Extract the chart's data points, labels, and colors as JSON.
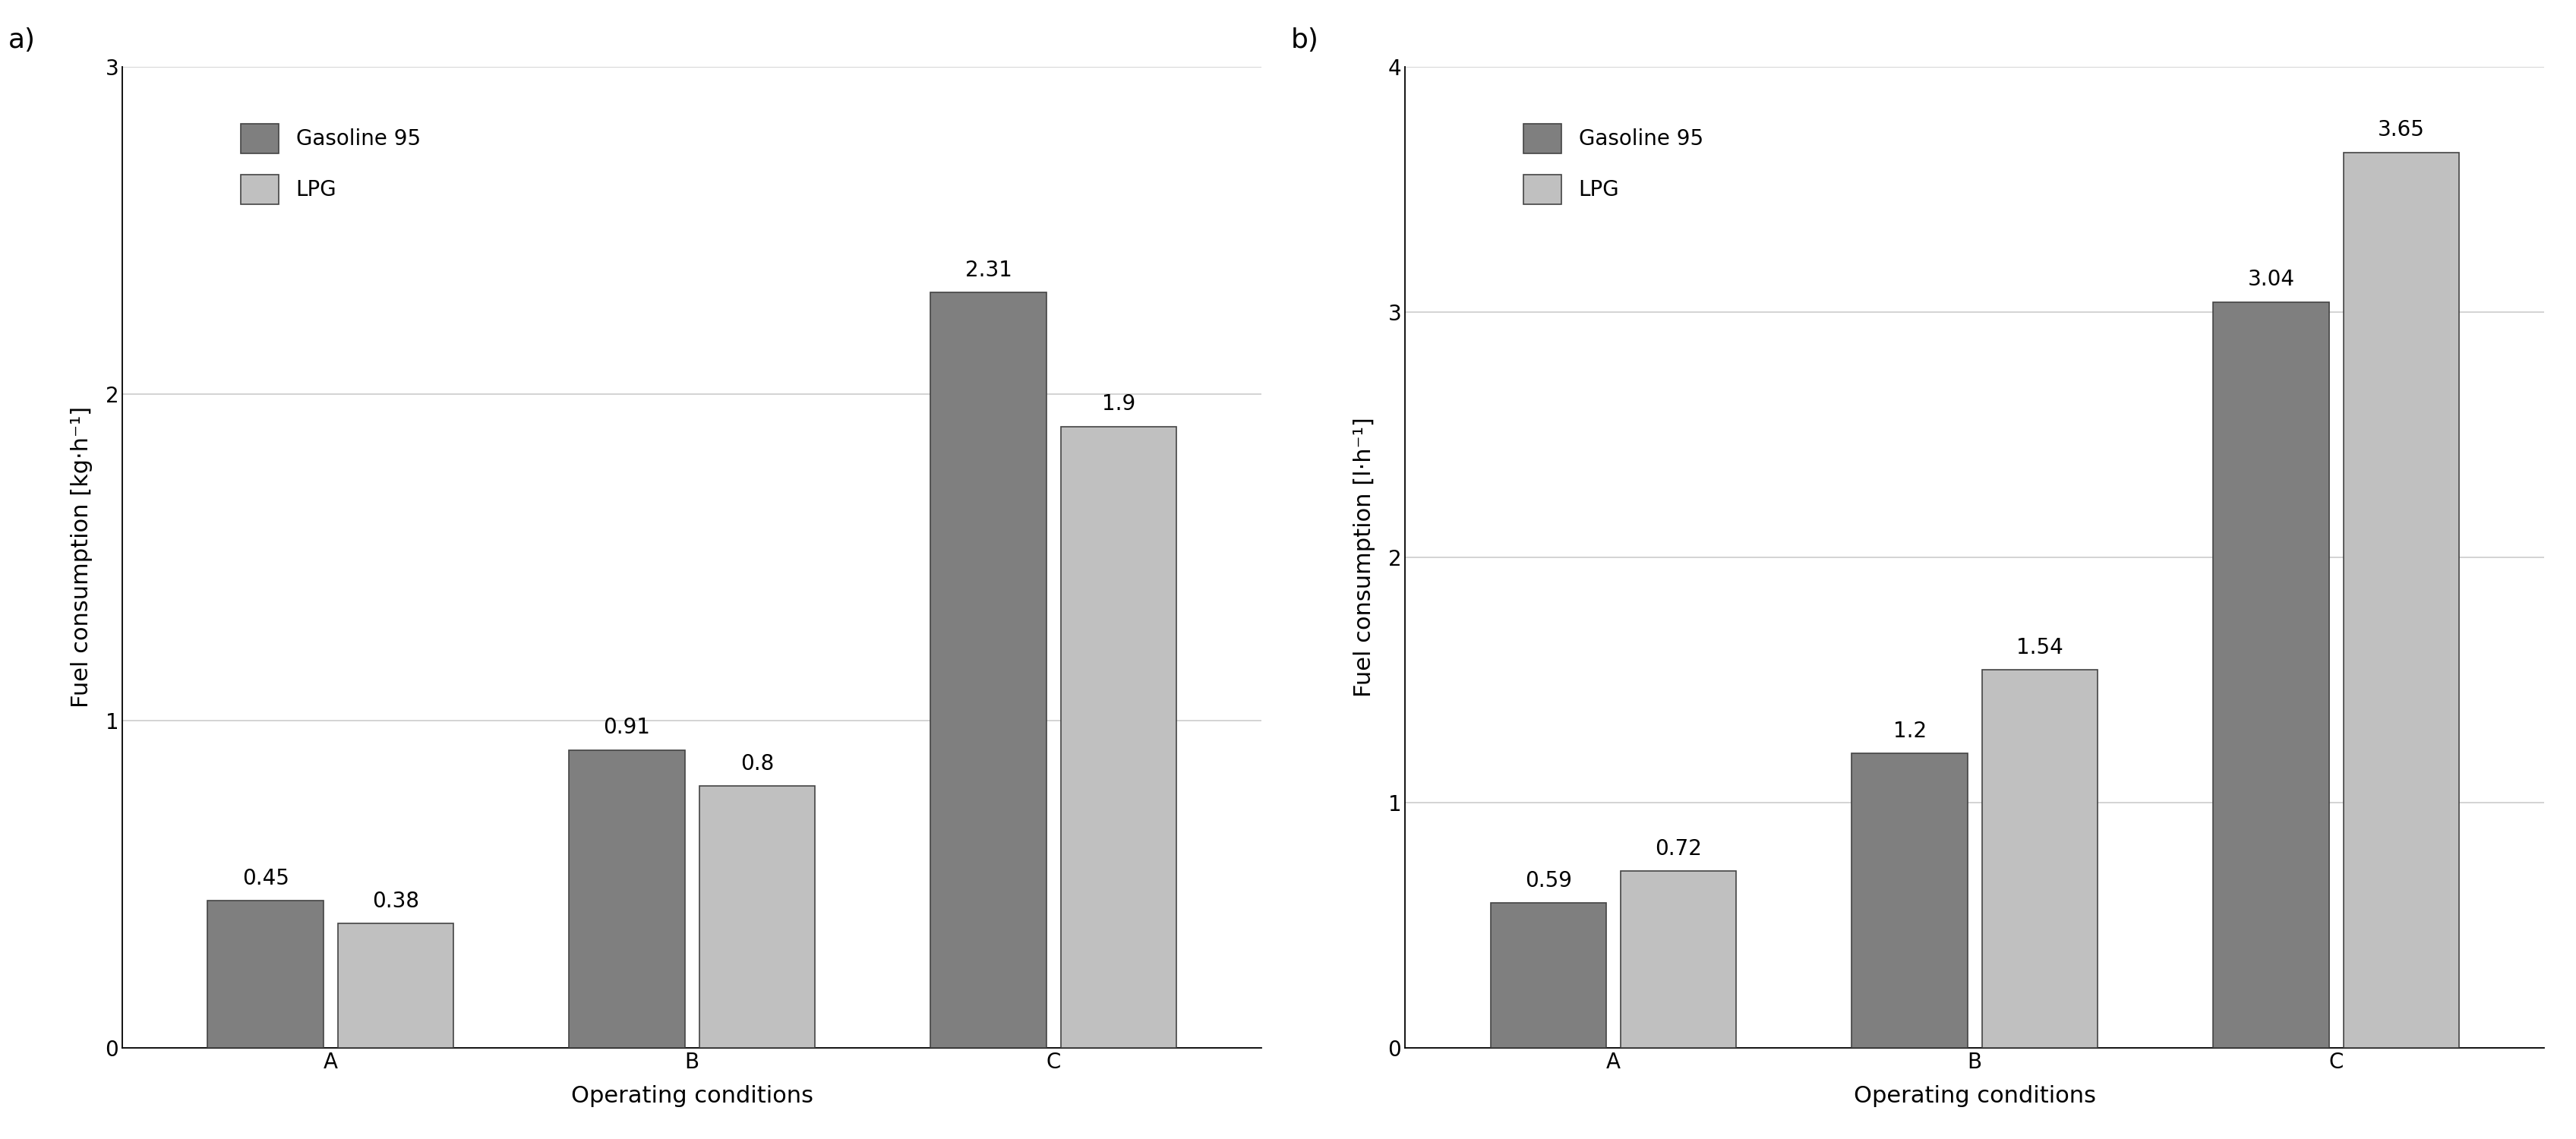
{
  "chart_a": {
    "title": "a)",
    "categories": [
      "A",
      "B",
      "C"
    ],
    "gasoline_values": [
      0.45,
      0.91,
      2.31
    ],
    "lpg_values": [
      0.38,
      0.8,
      1.9
    ],
    "ylabel": "Fuel consumption [kg·h⁻¹]",
    "xlabel": "Operating conditions",
    "ylim": [
      0,
      3
    ],
    "yticks": [
      0,
      1,
      2,
      3
    ]
  },
  "chart_b": {
    "title": "b)",
    "categories": [
      "A",
      "B",
      "C"
    ],
    "gasoline_values": [
      0.59,
      1.2,
      3.04
    ],
    "lpg_values": [
      0.72,
      1.54,
      3.65
    ],
    "ylabel": "Fuel consumption [l·h⁻¹]",
    "xlabel": "Operating conditions",
    "ylim": [
      0,
      4
    ],
    "yticks": [
      0,
      1,
      2,
      3,
      4
    ]
  },
  "gasoline_color": "#7f7f7f",
  "lpg_color": "#c0c0c0",
  "bar_edge_color": "#444444",
  "legend_labels": [
    "Gasoline 95",
    "LPG"
  ],
  "bar_width": 0.32,
  "fontsize_labels": 22,
  "fontsize_ticks": 20,
  "fontsize_values": 20,
  "fontsize_legend": 20,
  "fontsize_title": 26,
  "background_color": "#ffffff",
  "grid_color": "#cccccc"
}
